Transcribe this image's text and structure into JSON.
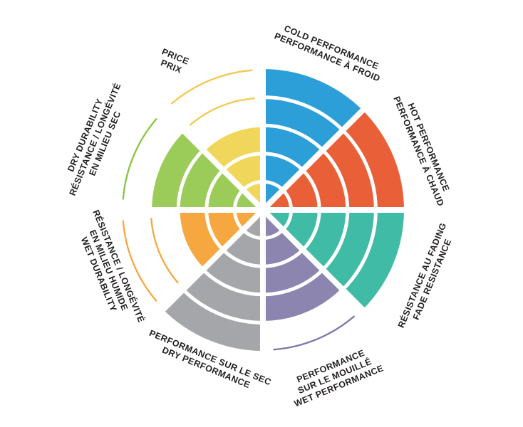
{
  "chart_data": {
    "type": "polar-bar",
    "title": "",
    "max_value": 5,
    "rings": 5,
    "grid": true,
    "legend_position": "around",
    "background_color": "#FFFFFF",
    "text_color": "#231F20",
    "ring_separator_color": "#FFFFFF",
    "sectors": [
      {
        "id": "cold-performance",
        "labels": [
          "COLD PERFORMANCE",
          "PERFORMANCE À FROID"
        ],
        "value": 5,
        "color": "#2C9FD9",
        "arc_color": "#2C9FD9"
      },
      {
        "id": "hot-performance",
        "labels": [
          "HOT PERFORMANCE",
          "PERFORMANCE À CHAUD"
        ],
        "value": 5,
        "color": "#E95F38",
        "arc_color": "#E95F38"
      },
      {
        "id": "fade-resistance",
        "labels": [
          "RÉSISTANCE AU FADING",
          "FADE RESISTANCE"
        ],
        "value": 5,
        "color": "#40BCA6",
        "arc_color": "#40BCA6"
      },
      {
        "id": "wet-performance",
        "labels": [
          "PERFORMANCE",
          "SUR LE MOUILLÉ",
          "WET PERFORMANCE"
        ],
        "value": 4,
        "color": "#8B85B0",
        "arc_color": "#7C76A8"
      },
      {
        "id": "dry-performance",
        "labels": [
          "PERFORMANCE SUR LE SEC",
          "DRY PERFORMANCE"
        ],
        "value": 5,
        "color": "#A4A6A9",
        "arc_color": "#A4A6A9"
      },
      {
        "id": "wet-durability",
        "labels": [
          "RÉSISTANCE / LONGÉVITÉ",
          "EN MILIEU HUMIDE",
          "WET DURABILITY"
        ],
        "value": 3,
        "color": "#F6A73F",
        "arc_color": "#F6A73F"
      },
      {
        "id": "dry-durability",
        "labels": [
          "DRY DURABILITY",
          "RÉSISTANCE / LONGÉVITÉ",
          "EN MILIEU SEC"
        ],
        "value": 4,
        "color": "#9BCB58",
        "arc_color": "#85C440"
      },
      {
        "id": "price",
        "labels": [
          "PRICE",
          "PRIX"
        ],
        "value": 3,
        "color": "#F0D75B",
        "arc_color": "#F2C94E"
      }
    ]
  }
}
